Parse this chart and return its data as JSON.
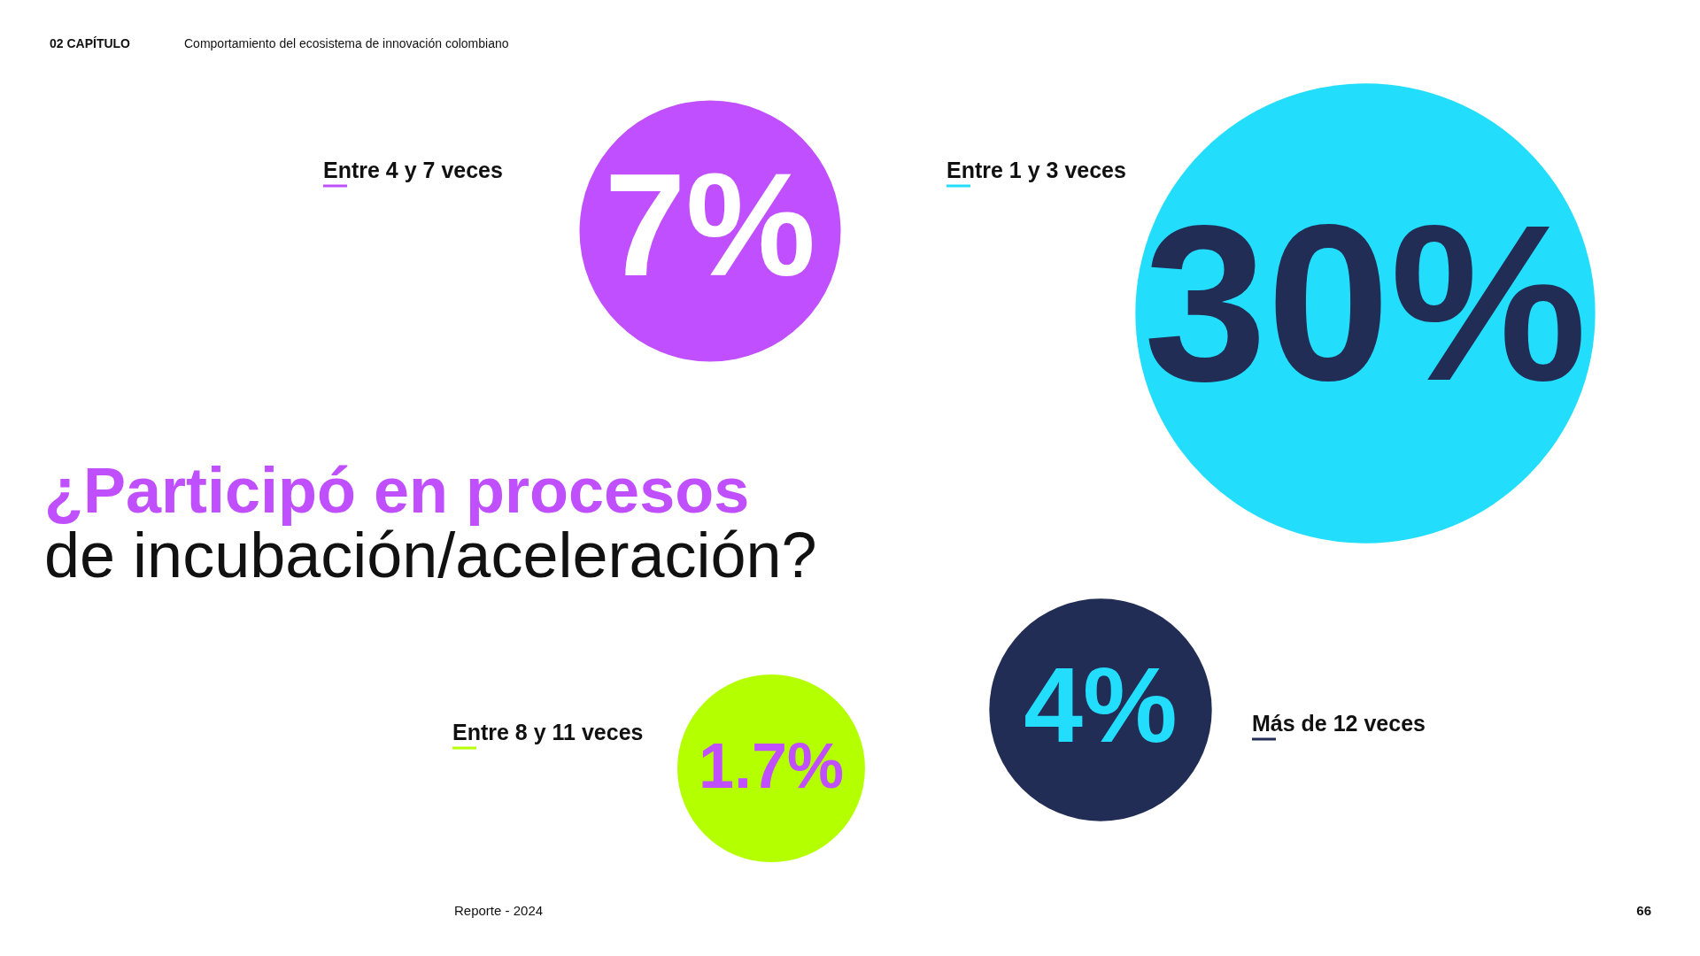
{
  "chart_data": {
    "type": "other",
    "title": "¿Participó en procesos de incubación/aceleración?",
    "categories": [
      "Entre 4 y 7 veces",
      "Entre 1 y 3 veces",
      "Entre 8 y 11 veces",
      "Más de 12 veces"
    ],
    "values": [
      7,
      30,
      1.7,
      4
    ],
    "value_labels": [
      "7%",
      "30%",
      "1.7%",
      "4%"
    ],
    "colors": [
      "#c050ff",
      "#22ddfc",
      "#b4ff00",
      "#222d55"
    ],
    "annotations": [
      "02  CAPÍTULO",
      "Comportamiento del ecosistema de innovación colombiano",
      "Reporte - 2024",
      "66"
    ]
  }
}
